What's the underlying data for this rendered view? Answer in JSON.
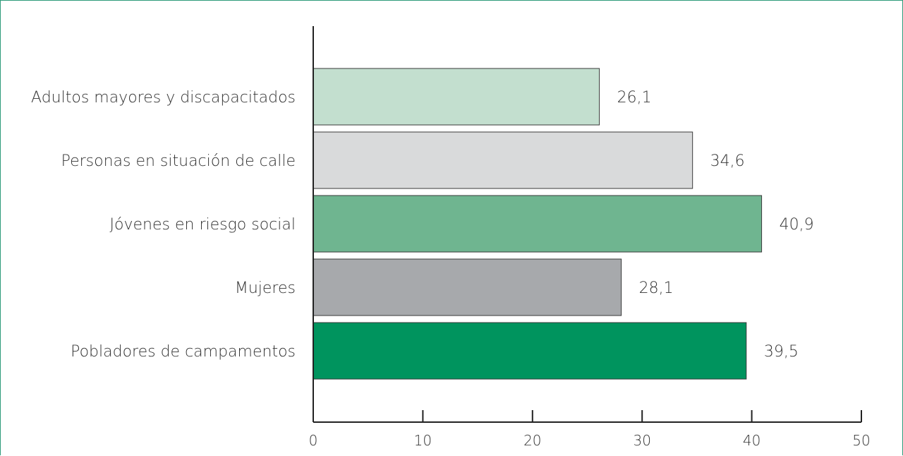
{
  "chart_data": {
    "type": "bar",
    "orientation": "horizontal",
    "categories": [
      "Adultos mayores y discapacitados",
      "Personas en situación de calle",
      "Jóvenes en riesgo social",
      "Mujeres",
      "Pobladores de campamentos"
    ],
    "values": [
      26.1,
      34.6,
      40.9,
      28.1,
      39.5
    ],
    "value_labels": [
      "26,1",
      "34,6",
      "40,9",
      "28,1",
      "39,5"
    ],
    "colors": [
      "#c3dfcf",
      "#d9dadb",
      "#6fb590",
      "#a7a9ac",
      "#00945e"
    ],
    "xlim": [
      0,
      50
    ],
    "xticks": [
      0,
      10,
      20,
      30,
      40,
      50
    ],
    "xtick_labels": [
      "0",
      "10",
      "20",
      "30",
      "40",
      "50"
    ],
    "grid": false,
    "legend": "none"
  }
}
